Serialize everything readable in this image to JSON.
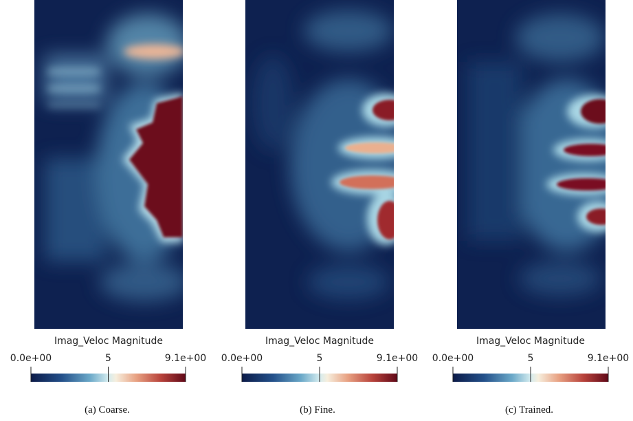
{
  "panels": [
    {
      "colorbar_title": "Imag_Veloc Magnitude",
      "ticks": [
        "0.0e+00",
        "5",
        "9.1e+00"
      ],
      "caption": "(a)  Coarse."
    },
    {
      "colorbar_title": "Imag_Veloc Magnitude",
      "ticks": [
        "0.0e+00",
        "5",
        "9.1e+00"
      ],
      "caption": "(b)  Fine."
    },
    {
      "colorbar_title": "Imag_Veloc Magnitude",
      "ticks": [
        "0.0e+00",
        "5",
        "9.1e+00"
      ],
      "caption": "(c)  Trained."
    }
  ]
}
